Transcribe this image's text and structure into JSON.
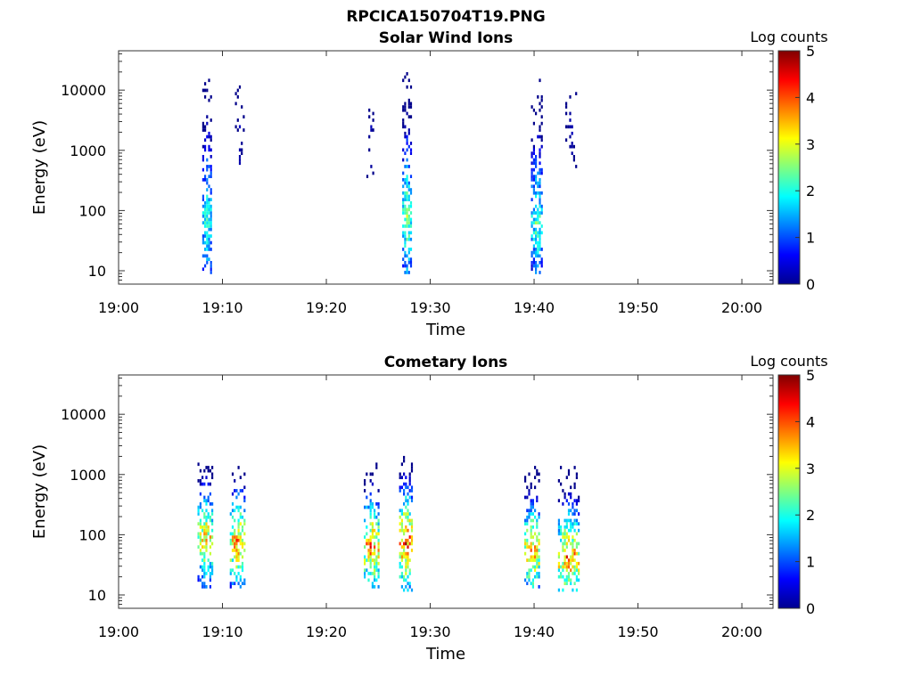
{
  "figure_title": "RPCICA150704T19.PNG",
  "chart_data": [
    {
      "type": "heatmap",
      "title": "Solar Wind Ions",
      "xlabel": "Time",
      "ylabel": "Energy (eV)",
      "colorbar_label": "Log counts",
      "colormap": "jet",
      "x_ticks": [
        "19:00",
        "19:10",
        "19:20",
        "19:30",
        "19:40",
        "19:50",
        "20:00"
      ],
      "x_range": [
        "19:00",
        "20:03"
      ],
      "y_scale": "log",
      "y_ticks": [
        "10",
        "100",
        "1000",
        "10000"
      ],
      "y_range_ev": [
        6,
        45000
      ],
      "color_ticks": [
        "0",
        "1",
        "2",
        "3",
        "4",
        "5"
      ],
      "color_range": [
        0,
        5
      ],
      "bursts": [
        {
          "time": "19:08.5",
          "dt_min": 0.9,
          "e_low_ev": 8,
          "e_high_ev": 17000,
          "peak_ev": 70,
          "peak_log_counts": 2.3,
          "density": 0.8
        },
        {
          "time": "19:11.6",
          "dt_min": 0.8,
          "e_low_ev": 300,
          "e_high_ev": 13000,
          "peak_ev": 1500,
          "peak_log_counts": 0.4,
          "density": 0.25
        },
        {
          "time": "19:24.2",
          "dt_min": 0.7,
          "e_low_ev": 300,
          "e_high_ev": 9000,
          "peak_ev": 1500,
          "peak_log_counts": 0.4,
          "density": 0.22
        },
        {
          "time": "19:27.7",
          "dt_min": 0.8,
          "e_low_ev": 8,
          "e_high_ev": 18000,
          "peak_ev": 70,
          "peak_log_counts": 2.7,
          "density": 0.8
        },
        {
          "time": "19:40.2",
          "dt_min": 1.0,
          "e_low_ev": 8,
          "e_high_ev": 15000,
          "peak_ev": 60,
          "peak_log_counts": 2.4,
          "density": 0.75
        },
        {
          "time": "19:43.5",
          "dt_min": 1.0,
          "e_low_ev": 400,
          "e_high_ev": 12000,
          "peak_ev": 2000,
          "peak_log_counts": 0.4,
          "density": 0.2
        }
      ]
    },
    {
      "type": "heatmap",
      "title": "Cometary Ions",
      "xlabel": "Time",
      "ylabel": "Energy (eV)",
      "colorbar_label": "Log counts",
      "colormap": "jet",
      "x_ticks": [
        "19:00",
        "19:10",
        "19:20",
        "19:30",
        "19:40",
        "19:50",
        "20:00"
      ],
      "x_range": [
        "19:00",
        "20:03"
      ],
      "y_scale": "log",
      "y_ticks": [
        "10",
        "100",
        "1000",
        "10000"
      ],
      "y_range_ev": [
        6,
        45000
      ],
      "color_ticks": [
        "0",
        "1",
        "2",
        "3",
        "4",
        "5"
      ],
      "color_range": [
        0,
        5
      ],
      "bursts": [
        {
          "time": "19:08.3",
          "dt_min": 1.4,
          "e_low_ev": 12,
          "e_high_ev": 1500,
          "peak_ev": 80,
          "peak_log_counts": 3.6,
          "density": 0.7
        },
        {
          "time": "19:11.4",
          "dt_min": 1.4,
          "e_low_ev": 12,
          "e_high_ev": 1500,
          "peak_ev": 70,
          "peak_log_counts": 3.8,
          "density": 0.7
        },
        {
          "time": "19:24.3",
          "dt_min": 1.4,
          "e_low_ev": 12,
          "e_high_ev": 1500,
          "peak_ev": 60,
          "peak_log_counts": 4.0,
          "density": 0.7
        },
        {
          "time": "19:27.6",
          "dt_min": 1.2,
          "e_low_ev": 10,
          "e_high_ev": 2000,
          "peak_ev": 70,
          "peak_log_counts": 4.3,
          "density": 0.75
        },
        {
          "time": "19:39.8",
          "dt_min": 1.5,
          "e_low_ev": 12,
          "e_high_ev": 1300,
          "peak_ev": 50,
          "peak_log_counts": 3.8,
          "density": 0.7
        },
        {
          "time": "19:43.3",
          "dt_min": 2.0,
          "e_low_ev": 10,
          "e_high_ev": 1300,
          "peak_ev": 40,
          "peak_log_counts": 4.0,
          "density": 0.7
        }
      ]
    }
  ]
}
